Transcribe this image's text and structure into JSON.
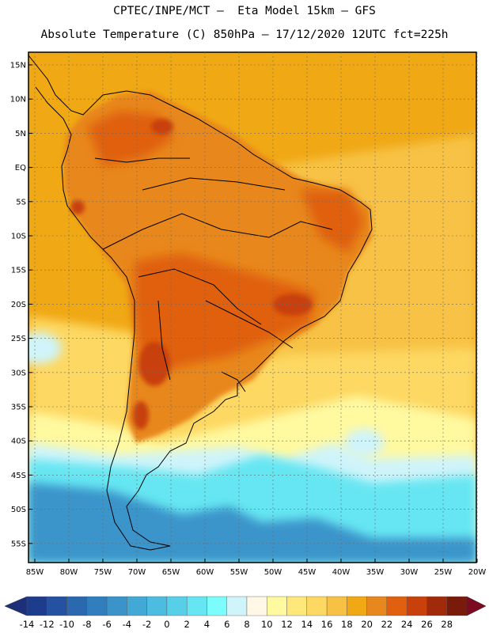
{
  "title_line1": "CPTEC/INPE/MCT –  Eta Model 15km – GFS",
  "title_line2": "Absolute Temperature (C) 850hPa – 17/12/2020 12UTC fct=225h",
  "lat_labels": [
    "15N",
    "10N",
    "5N",
    "EQ",
    "5S",
    "10S",
    "15S",
    "20S",
    "25S",
    "30S",
    "35S",
    "40S",
    "45S",
    "50S",
    "55S"
  ],
  "lon_labels": [
    "85W",
    "80W",
    "75W",
    "70W",
    "65W",
    "60W",
    "55W",
    "50W",
    "45W",
    "40W",
    "35W",
    "30W",
    "25W",
    "20W"
  ],
  "colorbar": {
    "labels": [
      "-14",
      "-12",
      "-10",
      "-8",
      "-6",
      "-4",
      "-2",
      "0",
      "2",
      "4",
      "6",
      "8",
      "10",
      "12",
      "14",
      "16",
      "18",
      "20",
      "22",
      "24",
      "26",
      "28"
    ],
    "colors": [
      "#1e3c8c",
      "#2552a0",
      "#2a68b0",
      "#307ebe",
      "#3a94ca",
      "#42a8d6",
      "#4cbce0",
      "#58cfe8",
      "#66e6f2",
      "#7cfcfc",
      "#cff4fa",
      "#fff8e6",
      "#fff9a0",
      "#ffe87a",
      "#fdd862",
      "#f7c244",
      "#f0a814",
      "#e8871e",
      "#e06010",
      "#c8400a",
      "#a02a0a",
      "#7a1a0a"
    ],
    "under_color": "#1e2f7a",
    "over_color": "#7c0a20"
  },
  "fields": {
    "ocean_north": "#f0a814",
    "atlantic_mid": "#f7c244",
    "subtropical": "#fdd862",
    "cool_band": "#fff9a0",
    "cold_band": "#cff4fa",
    "colder_band": "#66e6f2",
    "coldest_band": "#3a94ca",
    "land_warm": "#e8871e",
    "land_hot": "#e06010",
    "land_hottest": "#c8400a"
  }
}
